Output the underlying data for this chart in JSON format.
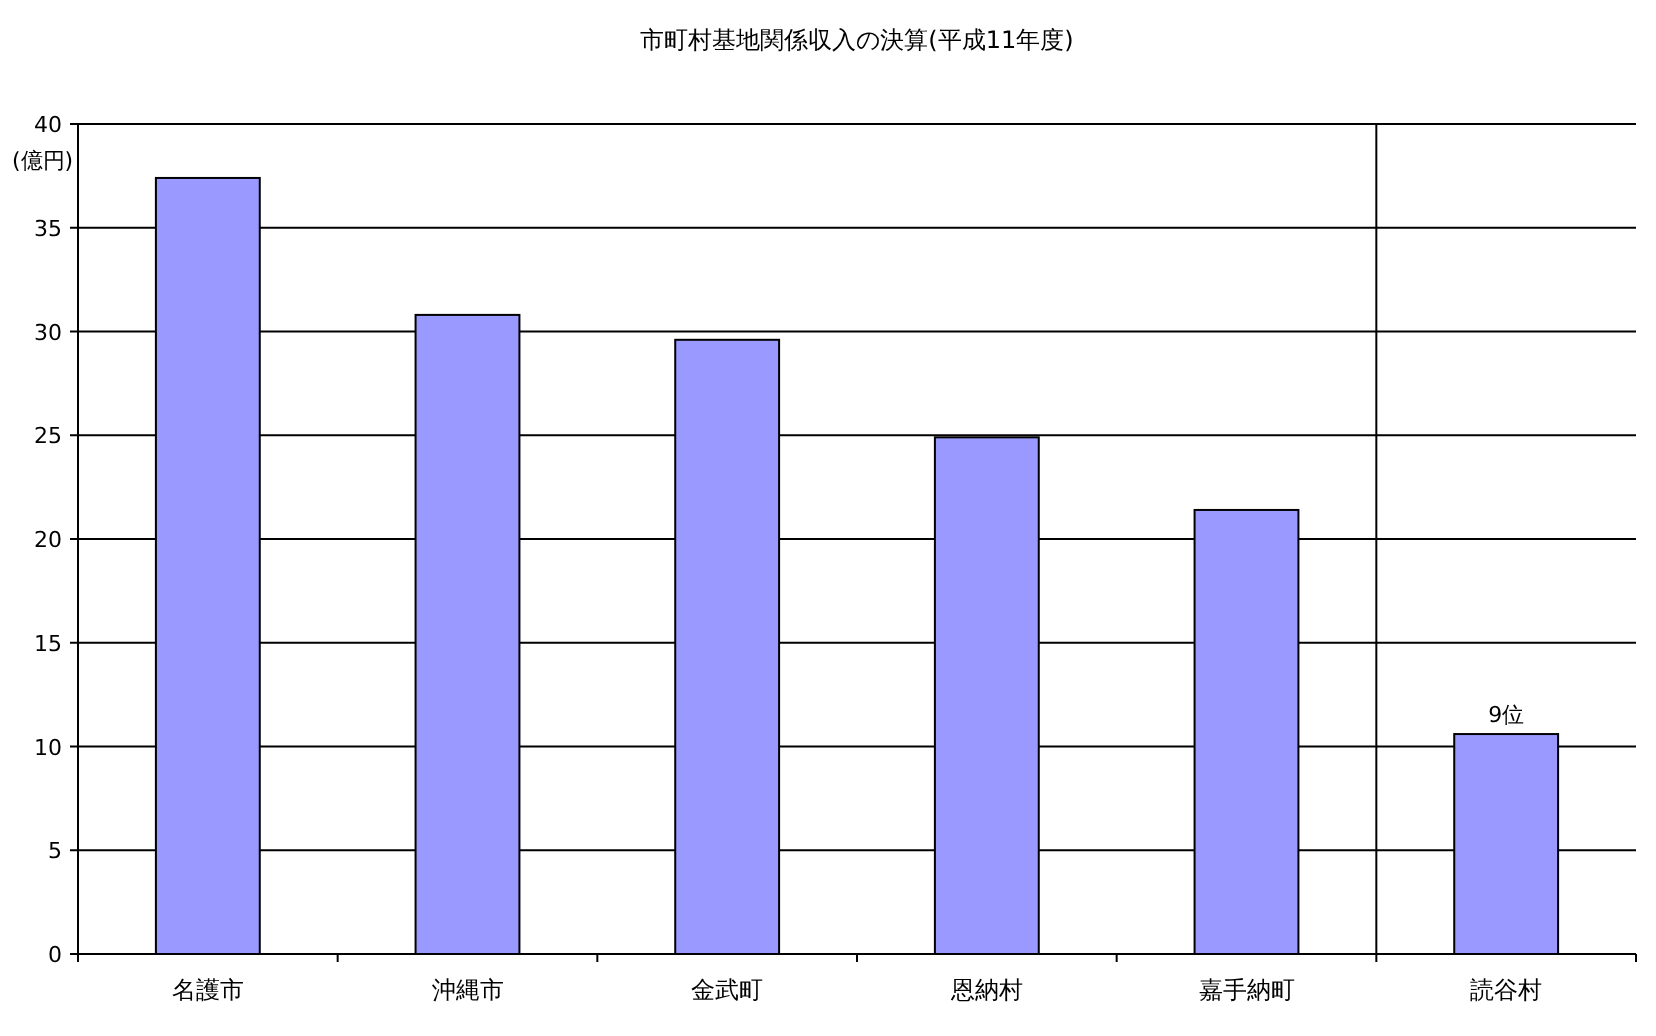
{
  "chart_data": {
    "type": "bar",
    "title": "市町村基地関係収入の決算(平成11年度)",
    "ylabel": "(億円)",
    "categories": [
      "名護市",
      "沖縄市",
      "金武町",
      "恩納村",
      "嘉手納町",
      "読谷村"
    ],
    "values": [
      37.4,
      30.8,
      29.6,
      24.9,
      21.4,
      10.6
    ],
    "color": "#9999ff",
    "ylim": [
      0,
      40
    ],
    "yticks": [
      0,
      5,
      10,
      15,
      20,
      25,
      30,
      35,
      40
    ],
    "grid": "y",
    "annotations": [
      {
        "text": "9位",
        "x": "読谷村",
        "y": 10.6
      }
    ]
  }
}
